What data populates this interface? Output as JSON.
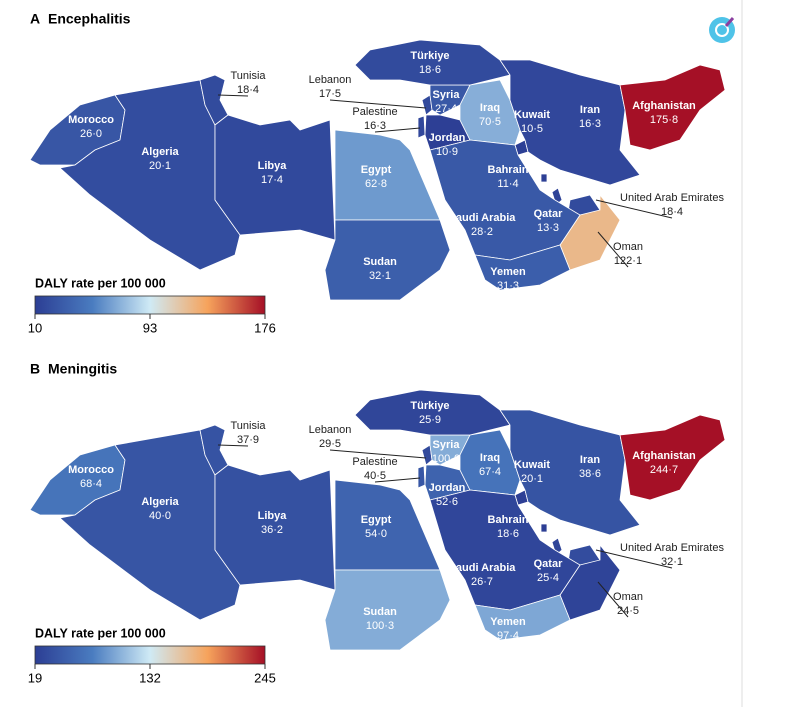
{
  "colorscale": [
    "#2c3e94",
    "#4a7cc0",
    "#cfeaf5",
    "#f6a35c",
    "#a50f26"
  ],
  "panels": [
    {
      "letter": "A",
      "title": "Encephalitis",
      "legend": {
        "title": "DALY rate per 100 000",
        "ticks": [
          10,
          93,
          176
        ]
      },
      "countries": [
        {
          "name": "Morocco",
          "value": 26.0,
          "value_label": "26·0"
        },
        {
          "name": "Algeria",
          "value": 20.1,
          "value_label": "20·1"
        },
        {
          "name": "Tunisia",
          "value": 18.4,
          "value_label": "18·4"
        },
        {
          "name": "Libya",
          "value": 17.4,
          "value_label": "17·4"
        },
        {
          "name": "Egypt",
          "value": 62.8,
          "value_label": "62·8"
        },
        {
          "name": "Sudan",
          "value": 32.1,
          "value_label": "32·1"
        },
        {
          "name": "Lebanon",
          "value": 17.5,
          "value_label": "17·5"
        },
        {
          "name": "Palestine",
          "value": 16.3,
          "value_label": "16·3"
        },
        {
          "name": "Syria",
          "value": 27.4,
          "value_label": "27·4"
        },
        {
          "name": "Jordan",
          "value": 10.9,
          "value_label": "10·9"
        },
        {
          "name": "Iraq",
          "value": 70.5,
          "value_label": "70·5"
        },
        {
          "name": "Türkiye",
          "value": 18.6,
          "value_label": "18·6"
        },
        {
          "name": "Kuwait",
          "value": 10.5,
          "value_label": "10·5"
        },
        {
          "name": "Bahrain",
          "value": 11.4,
          "value_label": "11·4"
        },
        {
          "name": "Qatar",
          "value": 13.3,
          "value_label": "13·3"
        },
        {
          "name": "United Arab Emirates",
          "value": 18.4,
          "value_label": "18·4"
        },
        {
          "name": "Oman",
          "value": 122.1,
          "value_label": "122·1"
        },
        {
          "name": "Saudi Arabia",
          "value": 28.2,
          "value_label": "28·2"
        },
        {
          "name": "Yemen",
          "value": 31.3,
          "value_label": "31·3"
        },
        {
          "name": "Iran",
          "value": 16.3,
          "value_label": "16·3"
        },
        {
          "name": "Afghanistan",
          "value": 175.8,
          "value_label": "175·8"
        }
      ]
    },
    {
      "letter": "B",
      "title": "Meningitis",
      "legend": {
        "title": "DALY rate per 100 000",
        "ticks": [
          19,
          132,
          245
        ]
      },
      "countries": [
        {
          "name": "Morocco",
          "value": 68.4,
          "value_label": "68·4"
        },
        {
          "name": "Algeria",
          "value": 40.0,
          "value_label": "40·0"
        },
        {
          "name": "Tunisia",
          "value": 37.9,
          "value_label": "37·9"
        },
        {
          "name": "Libya",
          "value": 36.2,
          "value_label": "36·2"
        },
        {
          "name": "Egypt",
          "value": 54.0,
          "value_label": "54·0"
        },
        {
          "name": "Sudan",
          "value": 100.3,
          "value_label": "100·3"
        },
        {
          "name": "Lebanon",
          "value": 29.5,
          "value_label": "29·5"
        },
        {
          "name": "Palestine",
          "value": 40.5,
          "value_label": "40·5"
        },
        {
          "name": "Syria",
          "value": 100.0,
          "value_label": "100·0"
        },
        {
          "name": "Jordan",
          "value": 52.6,
          "value_label": "52·6"
        },
        {
          "name": "Iraq",
          "value": 67.4,
          "value_label": "67·4"
        },
        {
          "name": "Türkiye",
          "value": 25.9,
          "value_label": "25·9"
        },
        {
          "name": "Kuwait",
          "value": 20.1,
          "value_label": "20·1"
        },
        {
          "name": "Bahrain",
          "value": 18.6,
          "value_label": "18·6"
        },
        {
          "name": "Qatar",
          "value": 25.4,
          "value_label": "25·4"
        },
        {
          "name": "United Arab Emirates",
          "value": 32.1,
          "value_label": "32·1"
        },
        {
          "name": "Oman",
          "value": 24.5,
          "value_label": "24·5"
        },
        {
          "name": "Saudi Arabia",
          "value": 26.7,
          "value_label": "26·7"
        },
        {
          "name": "Yemen",
          "value": 97.4,
          "value_label": "97·4"
        },
        {
          "name": "Iran",
          "value": 38.6,
          "value_label": "38·6"
        },
        {
          "name": "Afghanistan",
          "value": 244.7,
          "value_label": "244·7"
        }
      ]
    }
  ]
}
